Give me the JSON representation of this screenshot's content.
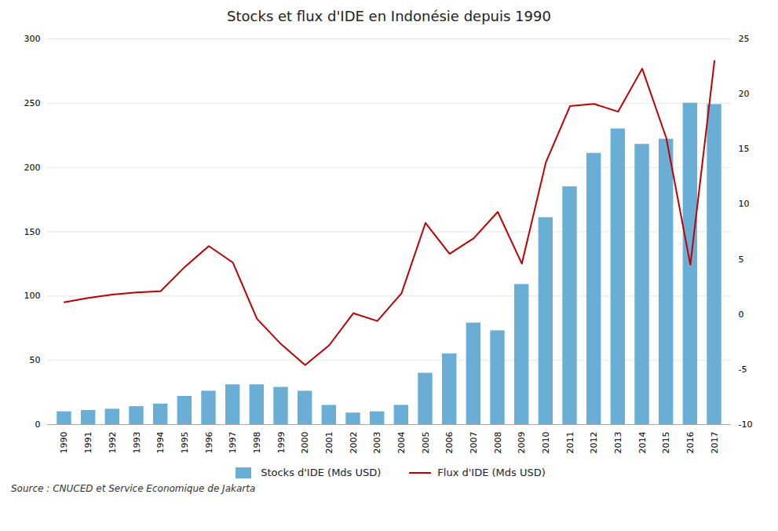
{
  "chart_data": {
    "type": "bar",
    "title": "Stocks et flux d'IDE en Indonésie depuis 1990",
    "categories": [
      "1990",
      "1991",
      "1992",
      "1993",
      "1994",
      "1995",
      "1996",
      "1997",
      "1998",
      "1999",
      "2000",
      "2001",
      "2002",
      "2003",
      "2004",
      "2005",
      "2006",
      "2007",
      "2008",
      "2009",
      "2010",
      "2011",
      "2012",
      "2013",
      "2014",
      "2015",
      "2016",
      "2017"
    ],
    "series": [
      {
        "name": "Stocks d'IDE (Mds USD)",
        "type": "bar",
        "color": "#6aaed6",
        "values": [
          10,
          11,
          12,
          14,
          16,
          22,
          26,
          31,
          31,
          29,
          26,
          15,
          9,
          10,
          15,
          40,
          55,
          79,
          73,
          109,
          161,
          185,
          211,
          230,
          218,
          222,
          250,
          249
        ]
      },
      {
        "name": "Flux d'IDE (Mds USD)",
        "type": "line",
        "color": "#c00000",
        "axis": "y2",
        "values": [
          1.1,
          1.5,
          1.8,
          2.0,
          2.1,
          4.3,
          6.2,
          4.7,
          -0.4,
          -2.7,
          -4.6,
          -2.8,
          0.1,
          -0.6,
          1.9,
          8.3,
          5.5,
          6.9,
          9.3,
          4.6,
          13.8,
          18.9,
          19.1,
          18.4,
          22.3,
          16.0,
          4.5,
          23.0
        ]
      }
    ],
    "ylim": [
      0,
      300
    ],
    "yticks": [
      0,
      50,
      100,
      150,
      200,
      250,
      300
    ],
    "y2lim": [
      -10,
      25
    ],
    "y2ticks": [
      -10,
      -5,
      0,
      5,
      10,
      15,
      20,
      25
    ],
    "grid": true,
    "legend": "bottom",
    "caption": "Source : CNUCED et Service Economique de Jakarta"
  }
}
